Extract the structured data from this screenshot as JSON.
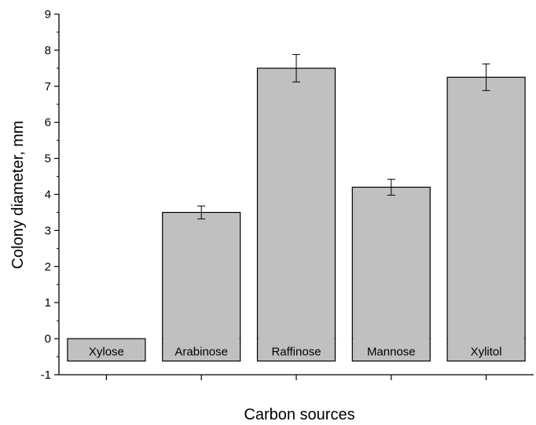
{
  "chart_data": {
    "type": "bar",
    "categories": [
      "Xylose",
      "Arabinose",
      "Raffinose",
      "Mannose",
      "Xylitol"
    ],
    "values": [
      0,
      3.5,
      7.5,
      4.2,
      7.25
    ],
    "errors": [
      0,
      0.18,
      0.38,
      0.22,
      0.37
    ],
    "xlabel": "Carbon sources",
    "ylabel": "Colony diameter, mm",
    "ylim": [
      -1,
      9
    ],
    "yticks": [
      -1,
      0,
      1,
      2,
      3,
      4,
      5,
      6,
      7,
      8,
      9
    ],
    "grid": false,
    "legend": "none",
    "bar_color": "#c0c0c0",
    "edge_color": "#000000",
    "category_labels_inside_bars": true
  }
}
